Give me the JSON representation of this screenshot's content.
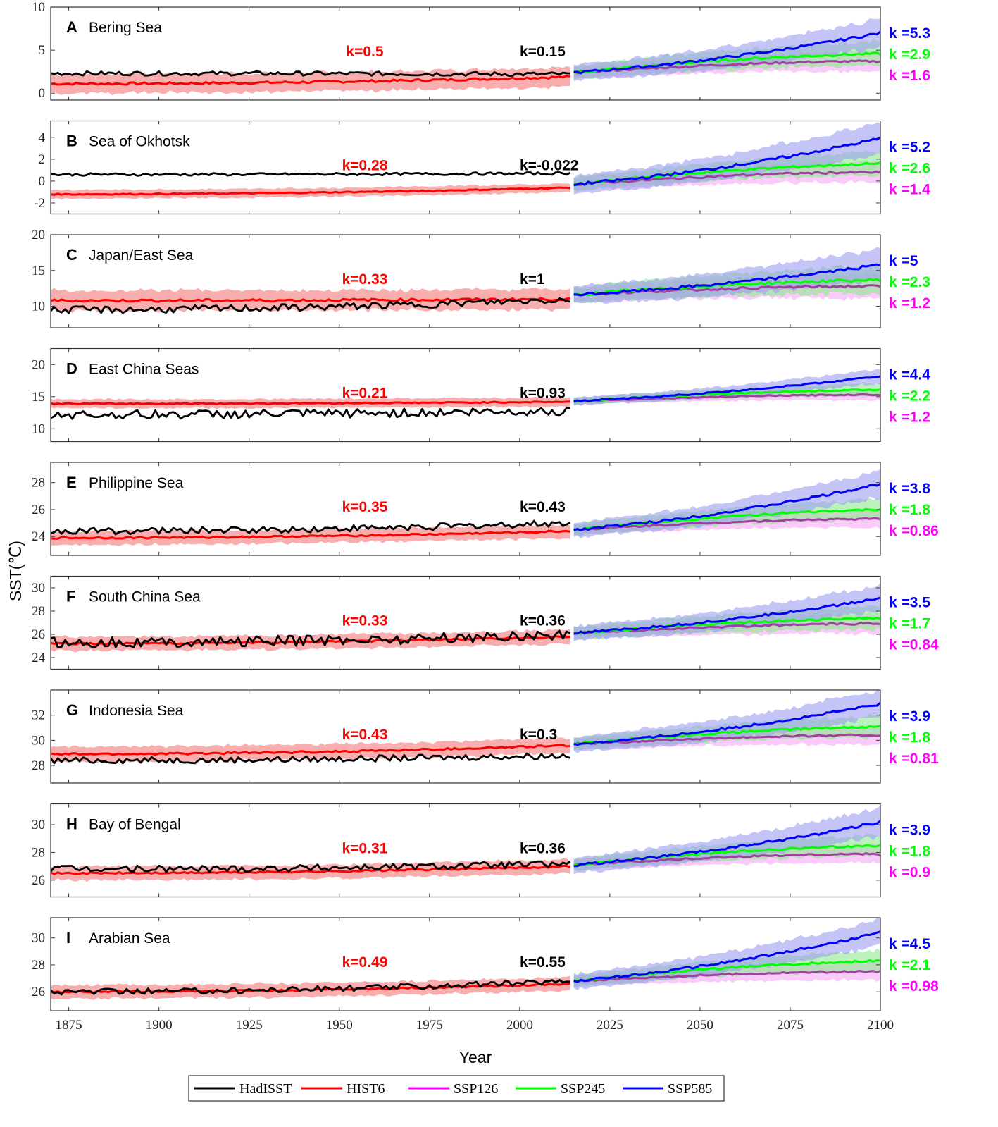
{
  "colors": {
    "HadISST": "#000000",
    "HIST6": "#ff0000",
    "HIST6_band": "#f7a0a0",
    "SSP126": "#ff00ff",
    "SSP126_band": "#f7a8f7",
    "SSP126_line": "#a040a0",
    "SSP245": "#00ff00",
    "SSP245_band": "#8ee88e",
    "SSP585": "#0000ff",
    "SSP585_band": "#9c9cf0"
  },
  "chart_data": {
    "type": "line",
    "xlabel": "Year",
    "ylabel": "SST(℃)",
    "xlim": [
      1870,
      2100
    ],
    "x_ticks": [
      1875,
      1900,
      1925,
      1950,
      1975,
      2000,
      2025,
      2050,
      2075,
      2100
    ],
    "grid": false,
    "legend_position": "bottom-center",
    "legend": [
      "HadISST",
      "HIST6",
      "SSP126",
      "SSP245",
      "SSP585"
    ],
    "panels": [
      {
        "letter": "A",
        "name": "Bering Sea",
        "ylim": [
          -0.8,
          10
        ],
        "yticks": [
          0,
          5,
          10
        ],
        "hadisst": {
          "start": 2.3,
          "end": 2.2,
          "k_label": "k=0.15",
          "noise": 0.25
        },
        "hist6": {
          "start": 1.1,
          "end": 1.9,
          "k_label": "k=0.5",
          "band": 1.1
        },
        "ssp126": {
          "end": 3.7,
          "k_label": "k =1.6",
          "band": 1.1
        },
        "ssp245": {
          "end": 4.6,
          "k_label": "k =2.9",
          "band": 1.3
        },
        "ssp585": {
          "end": 7.0,
          "k_label": "k =5.3",
          "band": 1.5
        },
        "ssp_start": 2.4
      },
      {
        "letter": "B",
        "name": "Sea of Okhotsk",
        "ylim": [
          -3,
          5.5
        ],
        "yticks": [
          -2,
          0,
          2,
          4
        ],
        "hadisst": {
          "start": 0.6,
          "end": 0.7,
          "k_label": "k=-0.022",
          "noise": 0.12
        },
        "hist6": {
          "start": -1.2,
          "end": -0.6,
          "k_label": "k=0.28",
          "band": 0.4
        },
        "ssp126": {
          "end": 0.8,
          "k_label": "k =1.4",
          "band": 0.9
        },
        "ssp245": {
          "end": 1.6,
          "k_label": "k =2.6",
          "band": 1.0
        },
        "ssp585": {
          "end": 3.9,
          "k_label": "k =5.2",
          "band": 1.3
        },
        "ssp_start": -0.3
      },
      {
        "letter": "C",
        "name": "Japan/East Sea",
        "ylim": [
          7,
          20
        ],
        "yticks": [
          10,
          15,
          20
        ],
        "hadisst": {
          "start": 9.5,
          "end": 11.0,
          "k_label": "k=1",
          "noise": 0.5
        },
        "hist6": {
          "start": 10.8,
          "end": 11.0,
          "k_label": "k=0.33",
          "band": 1.4
        },
        "ssp126": {
          "end": 12.8,
          "k_label": "k =1.2",
          "band": 1.6
        },
        "ssp245": {
          "end": 13.7,
          "k_label": "k =2.3",
          "band": 1.8
        },
        "ssp585": {
          "end": 15.8,
          "k_label": "k =5",
          "band": 2.0
        },
        "ssp_start": 11.6
      },
      {
        "letter": "D",
        "name": "East China Seas",
        "ylim": [
          8,
          22.5
        ],
        "yticks": [
          10,
          15,
          20
        ],
        "hadisst": {
          "start": 12.2,
          "end": 12.8,
          "k_label": "k=0.93",
          "noise": 0.7
        },
        "hist6": {
          "start": 13.9,
          "end": 14.2,
          "k_label": "k=0.21",
          "band": 0.7
        },
        "ssp126": {
          "end": 15.3,
          "k_label": "k =1.2",
          "band": 0.8
        },
        "ssp245": {
          "end": 16.1,
          "k_label": "k =2.2",
          "band": 0.9
        },
        "ssp585": {
          "end": 18.2,
          "k_label": "k =4.4",
          "band": 1.0
        },
        "ssp_start": 14.3
      },
      {
        "letter": "E",
        "name": "Philippine Sea",
        "ylim": [
          22.6,
          29.5
        ],
        "yticks": [
          24,
          26,
          28
        ],
        "hadisst": {
          "start": 24.4,
          "end": 25.0,
          "k_label": "k=0.43",
          "noise": 0.25
        },
        "hist6": {
          "start": 23.9,
          "end": 24.4,
          "k_label": "k=0.35",
          "band": 0.5
        },
        "ssp126": {
          "end": 25.3,
          "k_label": "k =0.86",
          "band": 0.6
        },
        "ssp245": {
          "end": 26.0,
          "k_label": "k =1.8",
          "band": 0.7
        },
        "ssp585": {
          "end": 27.9,
          "k_label": "k =3.8",
          "band": 0.9
        },
        "ssp_start": 24.5
      },
      {
        "letter": "F",
        "name": "South China Sea",
        "ylim": [
          23,
          31
        ],
        "yticks": [
          24,
          26,
          28,
          30
        ],
        "hadisst": {
          "start": 25.3,
          "end": 26.0,
          "k_label": "k=0.36",
          "noise": 0.45
        },
        "hist6": {
          "start": 25.2,
          "end": 25.8,
          "k_label": "k=0.33",
          "band": 0.6
        },
        "ssp126": {
          "end": 26.9,
          "k_label": "k =0.84",
          "band": 0.8
        },
        "ssp245": {
          "end": 27.4,
          "k_label": "k =1.7",
          "band": 0.9
        },
        "ssp585": {
          "end": 29.1,
          "k_label": "k =3.5",
          "band": 1.0
        },
        "ssp_start": 26.1
      },
      {
        "letter": "G",
        "name": "Indonesia Sea",
        "ylim": [
          26.6,
          34
        ],
        "yticks": [
          28,
          30,
          32
        ],
        "hadisst": {
          "start": 28.4,
          "end": 28.8,
          "k_label": "k=0.3",
          "noise": 0.25
        },
        "hist6": {
          "start": 28.9,
          "end": 29.6,
          "k_label": "k=0.43",
          "band": 0.6
        },
        "ssp126": {
          "end": 30.4,
          "k_label": "k =0.81",
          "band": 0.7
        },
        "ssp245": {
          "end": 31.1,
          "k_label": "k =1.8",
          "band": 0.8
        },
        "ssp585": {
          "end": 32.9,
          "k_label": "k =3.9",
          "band": 1.0
        },
        "ssp_start": 29.7
      },
      {
        "letter": "H",
        "name": "Bay of Bengal",
        "ylim": [
          24.8,
          31.5
        ],
        "yticks": [
          26,
          28,
          30
        ],
        "hadisst": {
          "start": 26.8,
          "end": 27.2,
          "k_label": "k=0.36",
          "noise": 0.25
        },
        "hist6": {
          "start": 26.5,
          "end": 27.0,
          "k_label": "k=0.31",
          "band": 0.5
        },
        "ssp126": {
          "end": 27.9,
          "k_label": "k =0.9",
          "band": 0.6
        },
        "ssp245": {
          "end": 28.5,
          "k_label": "k =1.8",
          "band": 0.7
        },
        "ssp585": {
          "end": 30.2,
          "k_label": "k =3.9",
          "band": 0.9
        },
        "ssp_start": 27.1
      },
      {
        "letter": "I",
        "name": "Arabian Sea",
        "ylim": [
          24.6,
          31.5
        ],
        "yticks": [
          26,
          28,
          30
        ],
        "hadisst": {
          "start": 26.0,
          "end": 26.8,
          "k_label": "k=0.55",
          "noise": 0.22
        },
        "hist6": {
          "start": 26.0,
          "end": 26.6,
          "k_label": "k=0.49",
          "band": 0.5
        },
        "ssp126": {
          "end": 27.5,
          "k_label": "k =0.98",
          "band": 0.6
        },
        "ssp245": {
          "end": 28.3,
          "k_label": "k =2.1",
          "band": 0.7
        },
        "ssp585": {
          "end": 30.4,
          "k_label": "k =4.5",
          "band": 0.9
        },
        "ssp_start": 26.8
      }
    ]
  }
}
